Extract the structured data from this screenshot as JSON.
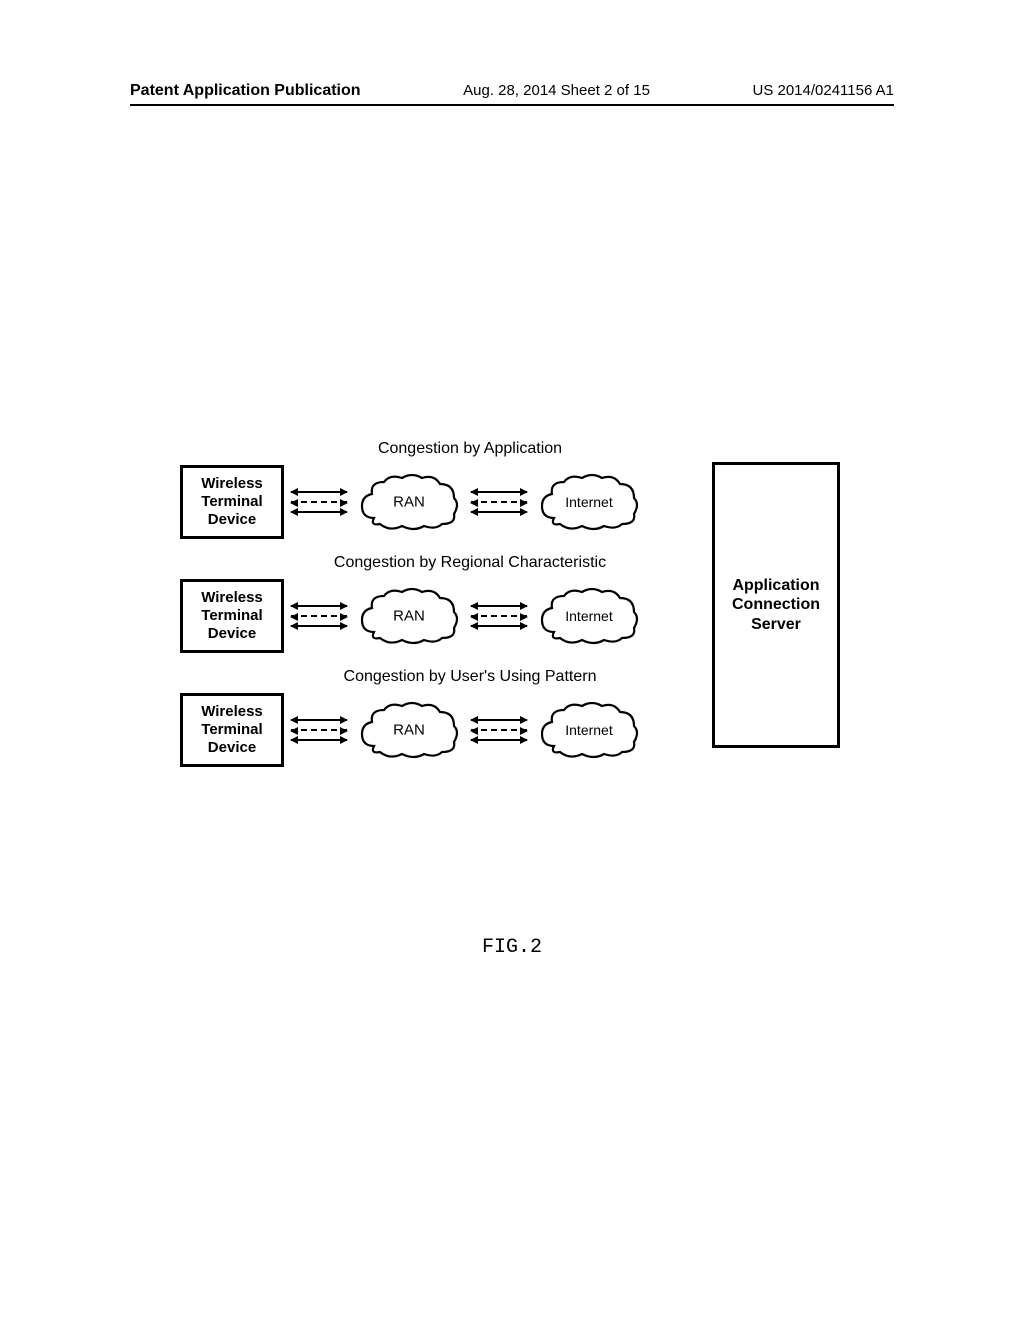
{
  "header": {
    "left": "Patent Application Publication",
    "center": "Aug. 28, 2014  Sheet 2 of 15",
    "right": "US 2014/0241156 A1"
  },
  "diagram": {
    "rows": [
      {
        "title": "Congestion by Application",
        "device": "Wireless\nTerminal\nDevice",
        "cloud1": "RAN",
        "cloud2": "Internet"
      },
      {
        "title": "Congestion by Regional Characteristic",
        "device": "Wireless\nTerminal\nDevice",
        "cloud1": "RAN",
        "cloud2": "Internet"
      },
      {
        "title": "Congestion by User's Using Pattern",
        "device": "Wireless\nTerminal\nDevice",
        "cloud1": "RAN",
        "cloud2": "Internet"
      }
    ],
    "server": "Application\nConnection\nServer"
  },
  "caption": "FIG.2",
  "style": {
    "cloud_stroke": "#000000",
    "cloud_stroke_width": 2.2,
    "cloud_fill": "#ffffff",
    "box_border": "#000000",
    "arrow_color": "#000000",
    "background": "#ffffff"
  }
}
